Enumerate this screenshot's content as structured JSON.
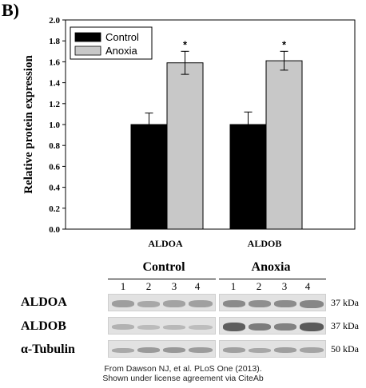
{
  "panel_label": "B)",
  "chart_data": {
    "type": "bar",
    "categories": [
      "ALDOA",
      "ALDOB"
    ],
    "series": [
      {
        "name": "Control",
        "values": [
          1.0,
          1.0
        ],
        "errors": [
          0.11,
          0.12
        ],
        "color": "#000000"
      },
      {
        "name": "Anoxia",
        "values": [
          1.59,
          1.61
        ],
        "errors": [
          0.11,
          0.09
        ],
        "color": "#c8c8c8"
      }
    ],
    "significance": [
      "*",
      "*"
    ],
    "ylabel": "Relative protein expression",
    "xlabel": "",
    "ylim": [
      0,
      2.0
    ],
    "yticks": [
      "0.0",
      "0.2",
      "0.4",
      "0.6",
      "0.8",
      "1.0",
      "1.2",
      "1.4",
      "1.6",
      "1.8",
      "2.0"
    ],
    "legend_position": "top-left",
    "grid": false
  },
  "blot": {
    "groups": [
      "Control",
      "Anoxia"
    ],
    "lanes": [
      "1",
      "2",
      "3",
      "4"
    ],
    "rows": [
      {
        "label": "ALDOA",
        "size": "37 kDa"
      },
      {
        "label": "ALDOB",
        "size": "37 kDa"
      },
      {
        "label": "α-Tubulin",
        "size": "50 kDa"
      }
    ]
  },
  "caption": {
    "line1": "From Dawson NJ, et al. PLoS One (2013).",
    "line2": "Shown under license agreement via CiteAb"
  }
}
